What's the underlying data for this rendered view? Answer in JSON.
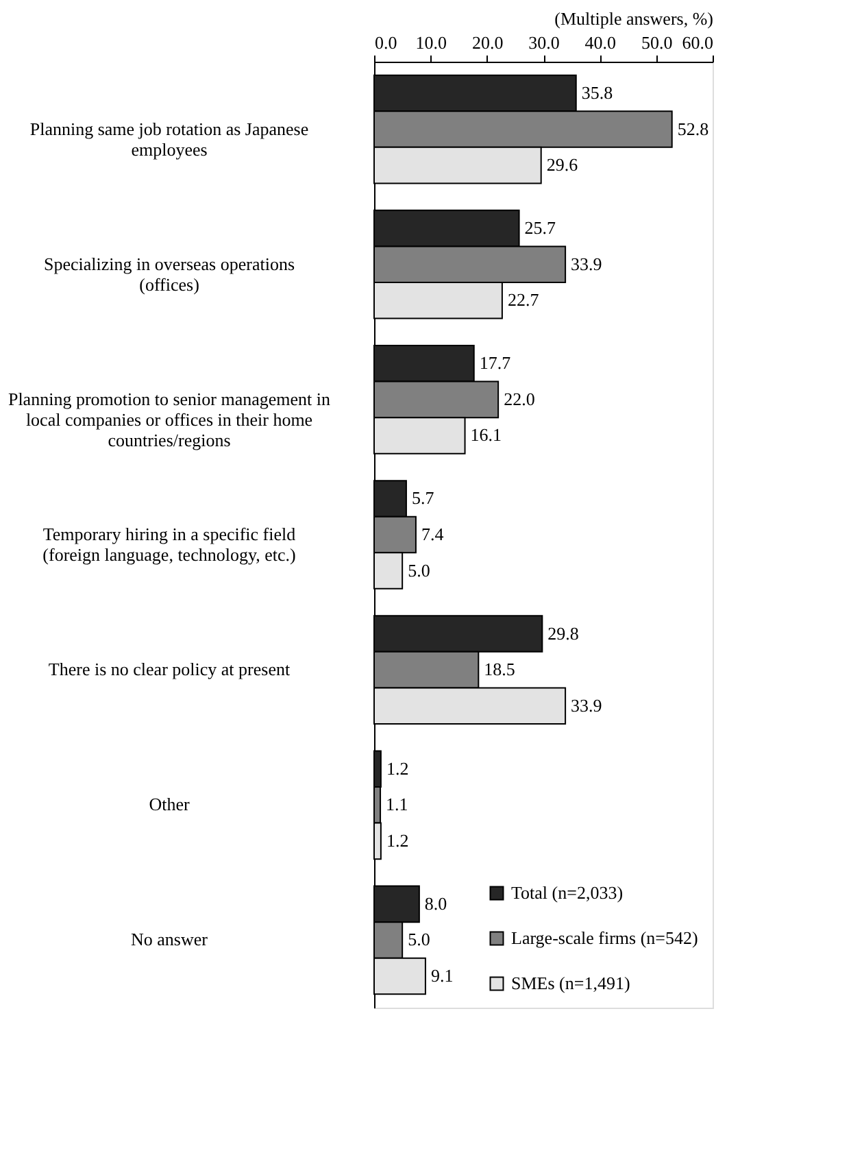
{
  "chart_data": {
    "type": "bar",
    "orientation": "horizontal",
    "categories": [
      "Planning same job rotation as Japanese employees",
      "Specializing in overseas operations (offices)",
      "Planning promotion to senior management in local companies or offices in their home countries/regions",
      "Temporary hiring in a specific field (foreign language, technology, etc.)",
      "There is no clear policy at present",
      "Other",
      "No answer"
    ],
    "series": [
      {
        "name": "Total (n=2,033)",
        "color": "#262626",
        "values": [
          35.8,
          25.7,
          17.7,
          5.7,
          29.8,
          1.2,
          8.0
        ],
        "value_labels": [
          "35.8",
          "25.7",
          "17.7",
          "5.7",
          "29.8",
          "1.2",
          "8.0"
        ]
      },
      {
        "name": "Large-scale firms (n=542)",
        "color": "#808080",
        "values": [
          52.8,
          33.9,
          22.0,
          7.4,
          18.5,
          1.1,
          5.0
        ],
        "value_labels": [
          "52.8",
          "33.9",
          "22.0",
          "7.4",
          "18.5",
          "1.1",
          "5.0"
        ]
      },
      {
        "name": "SMEs (n=1,491)",
        "color": "#e3e3e3",
        "values": [
          29.6,
          22.7,
          16.1,
          5.0,
          33.9,
          1.2,
          9.1
        ],
        "value_labels": [
          "29.6",
          "22.7",
          "16.1",
          "5.0",
          "33.9",
          "1.2",
          "9.1"
        ]
      }
    ],
    "xlim": [
      0,
      60
    ],
    "xticks": [
      {
        "value": 0,
        "label": "0.0"
      },
      {
        "value": 10,
        "label": "10.0"
      },
      {
        "value": 20,
        "label": "20.0"
      },
      {
        "value": 30,
        "label": "30.0"
      },
      {
        "value": 40,
        "label": "40.0"
      },
      {
        "value": 50,
        "label": "50.0"
      },
      {
        "value": 60,
        "label": "60.0"
      }
    ],
    "legend": "bottom right",
    "grid": false,
    "annotations": [
      "(Multiple answers, %)"
    ]
  }
}
